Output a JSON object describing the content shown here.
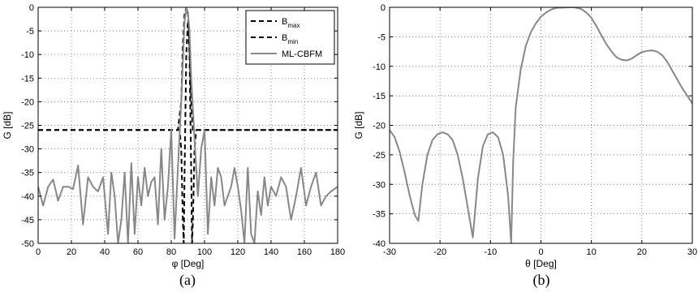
{
  "chart_data": [
    {
      "type": "line",
      "caption": "(a)",
      "xlabel": "φ [Deg]",
      "ylabel": "G [dB]",
      "xlim": [
        0,
        180
      ],
      "ylim": [
        -50,
        0
      ],
      "xticks": [
        0,
        20,
        40,
        60,
        80,
        100,
        120,
        140,
        160,
        180
      ],
      "yticks": [
        0,
        -5,
        -10,
        -15,
        -20,
        -25,
        -30,
        -35,
        -40,
        -45,
        -50
      ],
      "grid": true,
      "legend_position": "top-right",
      "series": [
        {
          "name": "B",
          "name_sub": "max",
          "style": "dashed",
          "color": "#000000",
          "x": [
            0,
            80,
            84,
            86,
            87,
            88,
            89,
            90,
            91,
            92,
            93,
            94,
            95,
            100,
            180
          ],
          "y": [
            -26,
            -26,
            -26,
            -20,
            -8,
            -1.5,
            0,
            -1.5,
            -8,
            -20,
            -26,
            -26,
            -26,
            -26,
            -26
          ]
        },
        {
          "name": "B",
          "name_sub": "min",
          "style": "dashed",
          "color": "#000000",
          "x": [
            0,
            80,
            85,
            86,
            87,
            87.5,
            88,
            89,
            90,
            91,
            92,
            92.5,
            93,
            94,
            95,
            100,
            180
          ],
          "y": [
            -26,
            -26,
            -26,
            -30,
            -45,
            -50,
            -35,
            -10,
            -3,
            -10,
            -35,
            -50,
            -45,
            -30,
            -26,
            -26,
            -26
          ]
        },
        {
          "name": "ML-CBFM",
          "style": "solid",
          "color": "#888888",
          "x": [
            0,
            3,
            6,
            9,
            12,
            15,
            18,
            21,
            24,
            27,
            30,
            33,
            36,
            39,
            42,
            44,
            46,
            48,
            50,
            52,
            54,
            56,
            58,
            60,
            62,
            64,
            66,
            68,
            70,
            72,
            74,
            76,
            78,
            80,
            82,
            84,
            86,
            88,
            89,
            90,
            91,
            92,
            94,
            96,
            98,
            100,
            102,
            104,
            106,
            108,
            110,
            112,
            114,
            116,
            118,
            120,
            122,
            124,
            126,
            128,
            130,
            132,
            134,
            136,
            138,
            140,
            143,
            146,
            149,
            152,
            155,
            158,
            161,
            164,
            167,
            170,
            173,
            176,
            180
          ],
          "y": [
            -38,
            -42,
            -38,
            -36.5,
            -41,
            -38,
            -38,
            -38.5,
            -33.5,
            -46,
            -36,
            -38,
            -39,
            -36,
            -48,
            -35,
            -40,
            -50,
            -45,
            -35,
            -50,
            -33,
            -48,
            -36,
            -42,
            -34,
            -40,
            -37,
            -36,
            -46,
            -30,
            -45,
            -38,
            -26,
            -49,
            -34,
            -20,
            -3,
            0,
            -1,
            -5,
            -15,
            -28,
            -40,
            -30,
            -26,
            -48,
            -36,
            -42,
            -34,
            -36,
            -42,
            -40,
            -38,
            -34,
            -38,
            -43,
            -50,
            -34,
            -48,
            -50,
            -39,
            -44,
            -36,
            -42,
            -38,
            -40,
            -36,
            -38,
            -45,
            -40,
            -34,
            -42,
            -38,
            -35,
            -42,
            -40,
            -39,
            -38
          ]
        }
      ]
    },
    {
      "type": "line",
      "caption": "(b)",
      "xlabel": "θ [Deg]",
      "ylabel": "G [dB]",
      "xlim": [
        -30,
        30
      ],
      "ylim": [
        -40,
        0
      ],
      "xticks": [
        -30,
        -20,
        -10,
        0,
        10,
        20,
        30
      ],
      "yticks": [
        0,
        -5,
        -10,
        -15,
        -20,
        -25,
        -30,
        -35,
        -40
      ],
      "grid": true,
      "series": [
        {
          "style": "solid",
          "color": "#888888",
          "x": [
            -30,
            -29,
            -28,
            -27,
            -26,
            -25,
            -24.3,
            -23.5,
            -22.5,
            -21.5,
            -20.5,
            -19.5,
            -18.5,
            -17.5,
            -16.5,
            -15.5,
            -14.5,
            -13.5,
            -12.5,
            -11.5,
            -10.5,
            -9.5,
            -8.5,
            -7.5,
            -6.5,
            -5.9,
            -5.5,
            -5,
            -4,
            -3,
            -2,
            -1,
            0,
            1,
            2,
            3,
            4,
            5,
            6,
            6.5,
            7,
            8,
            9,
            10,
            11,
            12,
            13,
            14,
            15,
            16,
            17,
            18,
            19,
            20,
            21,
            22,
            23,
            24,
            25,
            26,
            27,
            28,
            29,
            30
          ],
          "y": [
            -20.8,
            -22,
            -24.5,
            -28,
            -32,
            -35.2,
            -36.2,
            -30,
            -25,
            -22.5,
            -21.5,
            -21.2,
            -21.5,
            -22.5,
            -25,
            -29,
            -34,
            -39,
            -29,
            -23.5,
            -21.5,
            -21.2,
            -22,
            -25,
            -32,
            -40,
            -26,
            -17,
            -10.5,
            -6.5,
            -4.2,
            -2.7,
            -1.6,
            -0.9,
            -0.4,
            -0.1,
            -0.05,
            -0.02,
            0,
            0,
            -0.05,
            -0.3,
            -0.9,
            -1.8,
            -3.2,
            -4.8,
            -6.3,
            -7.5,
            -8.5,
            -8.9,
            -9.0,
            -8.7,
            -8.1,
            -7.6,
            -7.4,
            -7.3,
            -7.5,
            -8.1,
            -9.2,
            -10.7,
            -12.2,
            -13.7,
            -15.0,
            -16.3
          ]
        }
      ]
    }
  ]
}
